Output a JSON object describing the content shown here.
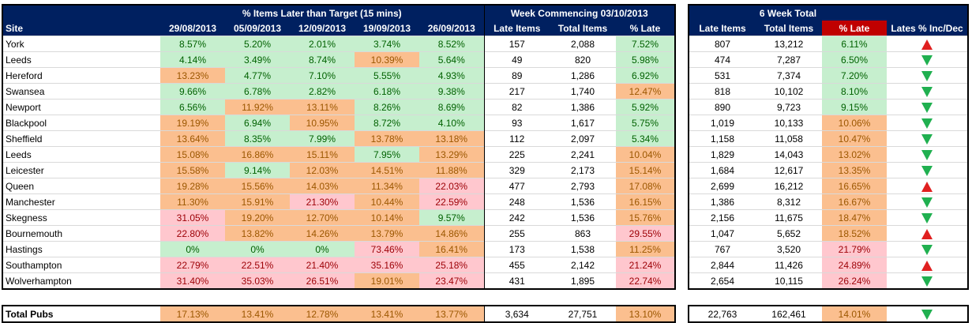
{
  "header": {
    "group1": "% Items Later than Target (15 mins)",
    "group2": "Week Commencing 03/10/2013",
    "group3": "6 Week Total",
    "col_site": "Site",
    "dates": [
      "29/08/2013",
      "05/09/2013",
      "12/09/2013",
      "19/09/2013",
      "26/09/2013"
    ],
    "late_items": "Late Items",
    "total_items": "Total Items",
    "pct_late": "% Late",
    "side_late_items": "Late Items",
    "side_total_items": "Total Items",
    "side_pct_late": "% Late",
    "lates_inc_dec": "Lates % Inc/Dec"
  },
  "colors": {
    "header_bg": "#002060",
    "pct_late_header_bg": "#c00000",
    "good": "#c6efce",
    "warn": "#fbbf8f",
    "bad": "#ffc7ce",
    "up_arrow": "#e02020",
    "down_arrow": "#20b050"
  },
  "rows": [
    {
      "site": "York",
      "pcts": [
        [
          "8.57%",
          "g"
        ],
        [
          "5.20%",
          "g"
        ],
        [
          "2.01%",
          "g"
        ],
        [
          "3.74%",
          "g"
        ],
        [
          "8.52%",
          "g"
        ]
      ],
      "late": "157",
      "total": "2,088",
      "pct": [
        "7.52%",
        "g"
      ],
      "s_late": "807",
      "s_total": "13,212",
      "s_pct": [
        "6.11%",
        "g"
      ],
      "trend": "up"
    },
    {
      "site": "Leeds",
      "pcts": [
        [
          "4.14%",
          "g"
        ],
        [
          "3.49%",
          "g"
        ],
        [
          "8.74%",
          "g"
        ],
        [
          "10.39%",
          "o"
        ],
        [
          "5.64%",
          "g"
        ]
      ],
      "late": "49",
      "total": "820",
      "pct": [
        "5.98%",
        "g"
      ],
      "s_late": "474",
      "s_total": "7,287",
      "s_pct": [
        "6.50%",
        "g"
      ],
      "trend": "down"
    },
    {
      "site": "Hereford",
      "pcts": [
        [
          "13.23%",
          "o"
        ],
        [
          "4.77%",
          "g"
        ],
        [
          "7.10%",
          "g"
        ],
        [
          "5.55%",
          "g"
        ],
        [
          "4.93%",
          "g"
        ]
      ],
      "late": "89",
      "total": "1,286",
      "pct": [
        "6.92%",
        "g"
      ],
      "s_late": "531",
      "s_total": "7,374",
      "s_pct": [
        "7.20%",
        "g"
      ],
      "trend": "down"
    },
    {
      "site": "Swansea",
      "pcts": [
        [
          "9.66%",
          "g"
        ],
        [
          "6.78%",
          "g"
        ],
        [
          "2.82%",
          "g"
        ],
        [
          "6.18%",
          "g"
        ],
        [
          "9.38%",
          "g"
        ]
      ],
      "late": "217",
      "total": "1,740",
      "pct": [
        "12.47%",
        "o"
      ],
      "s_late": "818",
      "s_total": "10,102",
      "s_pct": [
        "8.10%",
        "g"
      ],
      "trend": "down"
    },
    {
      "site": "Newport",
      "pcts": [
        [
          "6.56%",
          "g"
        ],
        [
          "11.92%",
          "o"
        ],
        [
          "13.11%",
          "o"
        ],
        [
          "8.26%",
          "g"
        ],
        [
          "8.69%",
          "g"
        ]
      ],
      "late": "82",
      "total": "1,386",
      "pct": [
        "5.92%",
        "g"
      ],
      "s_late": "890",
      "s_total": "9,723",
      "s_pct": [
        "9.15%",
        "g"
      ],
      "trend": "down"
    },
    {
      "site": "Blackpool",
      "pcts": [
        [
          "19.19%",
          "o"
        ],
        [
          "6.94%",
          "g"
        ],
        [
          "10.95%",
          "o"
        ],
        [
          "8.72%",
          "g"
        ],
        [
          "4.10%",
          "g"
        ]
      ],
      "late": "93",
      "total": "1,617",
      "pct": [
        "5.75%",
        "g"
      ],
      "s_late": "1,019",
      "s_total": "10,133",
      "s_pct": [
        "10.06%",
        "o"
      ],
      "trend": "down"
    },
    {
      "site": "Sheffield",
      "pcts": [
        [
          "13.64%",
          "o"
        ],
        [
          "8.35%",
          "g"
        ],
        [
          "7.99%",
          "g"
        ],
        [
          "13.78%",
          "o"
        ],
        [
          "13.18%",
          "o"
        ]
      ],
      "late": "112",
      "total": "2,097",
      "pct": [
        "5.34%",
        "g"
      ],
      "s_late": "1,158",
      "s_total": "11,058",
      "s_pct": [
        "10.47%",
        "o"
      ],
      "trend": "down"
    },
    {
      "site": "Leeds",
      "pcts": [
        [
          "15.08%",
          "o"
        ],
        [
          "16.86%",
          "o"
        ],
        [
          "15.11%",
          "o"
        ],
        [
          "7.95%",
          "g"
        ],
        [
          "13.29%",
          "o"
        ]
      ],
      "late": "225",
      "total": "2,241",
      "pct": [
        "10.04%",
        "o"
      ],
      "s_late": "1,829",
      "s_total": "14,043",
      "s_pct": [
        "13.02%",
        "o"
      ],
      "trend": "down"
    },
    {
      "site": "Leicester",
      "pcts": [
        [
          "15.58%",
          "o"
        ],
        [
          "9.14%",
          "g"
        ],
        [
          "12.03%",
          "o"
        ],
        [
          "14.51%",
          "o"
        ],
        [
          "11.88%",
          "o"
        ]
      ],
      "late": "329",
      "total": "2,173",
      "pct": [
        "15.14%",
        "o"
      ],
      "s_late": "1,684",
      "s_total": "12,617",
      "s_pct": [
        "13.35%",
        "o"
      ],
      "trend": "down"
    },
    {
      "site": "Queen",
      "pcts": [
        [
          "19.28%",
          "o"
        ],
        [
          "15.56%",
          "o"
        ],
        [
          "14.03%",
          "o"
        ],
        [
          "11.34%",
          "o"
        ],
        [
          "22.03%",
          "r"
        ]
      ],
      "late": "477",
      "total": "2,793",
      "pct": [
        "17.08%",
        "o"
      ],
      "s_late": "2,699",
      "s_total": "16,212",
      "s_pct": [
        "16.65%",
        "o"
      ],
      "trend": "up"
    },
    {
      "site": "Manchester",
      "pcts": [
        [
          "11.30%",
          "o"
        ],
        [
          "15.91%",
          "o"
        ],
        [
          "21.30%",
          "r"
        ],
        [
          "10.44%",
          "o"
        ],
        [
          "22.59%",
          "r"
        ]
      ],
      "late": "248",
      "total": "1,536",
      "pct": [
        "16.15%",
        "o"
      ],
      "s_late": "1,386",
      "s_total": "8,312",
      "s_pct": [
        "16.67%",
        "o"
      ],
      "trend": "down"
    },
    {
      "site": "Skegness",
      "pcts": [
        [
          "31.05%",
          "r"
        ],
        [
          "19.20%",
          "o"
        ],
        [
          "12.70%",
          "o"
        ],
        [
          "10.14%",
          "o"
        ],
        [
          "9.57%",
          "g"
        ]
      ],
      "late": "242",
      "total": "1,536",
      "pct": [
        "15.76%",
        "o"
      ],
      "s_late": "2,156",
      "s_total": "11,675",
      "s_pct": [
        "18.47%",
        "o"
      ],
      "trend": "down"
    },
    {
      "site": "Bournemouth",
      "pcts": [
        [
          "22.80%",
          "r"
        ],
        [
          "13.82%",
          "o"
        ],
        [
          "14.26%",
          "o"
        ],
        [
          "13.79%",
          "o"
        ],
        [
          "14.86%",
          "o"
        ]
      ],
      "late": "255",
      "total": "863",
      "pct": [
        "29.55%",
        "r"
      ],
      "s_late": "1,047",
      "s_total": "5,652",
      "s_pct": [
        "18.52%",
        "o"
      ],
      "trend": "up"
    },
    {
      "site": "Hastings",
      "pcts": [
        [
          "0%",
          "g"
        ],
        [
          "0%",
          "g"
        ],
        [
          "0%",
          "g"
        ],
        [
          "73.46%",
          "r"
        ],
        [
          "16.41%",
          "o"
        ]
      ],
      "late": "173",
      "total": "1,538",
      "pct": [
        "11.25%",
        "o"
      ],
      "s_late": "767",
      "s_total": "3,520",
      "s_pct": [
        "21.79%",
        "r"
      ],
      "trend": "down"
    },
    {
      "site": "Southampton",
      "pcts": [
        [
          "22.79%",
          "r"
        ],
        [
          "22.51%",
          "r"
        ],
        [
          "21.40%",
          "r"
        ],
        [
          "35.16%",
          "r"
        ],
        [
          "25.18%",
          "r"
        ]
      ],
      "late": "455",
      "total": "2,142",
      "pct": [
        "21.24%",
        "r"
      ],
      "s_late": "2,844",
      "s_total": "11,426",
      "s_pct": [
        "24.89%",
        "r"
      ],
      "trend": "up"
    },
    {
      "site": "Wolverhampton",
      "pcts": [
        [
          "31.40%",
          "r"
        ],
        [
          "35.03%",
          "r"
        ],
        [
          "26.51%",
          "r"
        ],
        [
          "19.01%",
          "o"
        ],
        [
          "23.47%",
          "r"
        ]
      ],
      "late": "431",
      "total": "1,895",
      "pct": [
        "22.74%",
        "r"
      ],
      "s_late": "2,654",
      "s_total": "10,115",
      "s_pct": [
        "26.24%",
        "r"
      ],
      "trend": "down"
    }
  ],
  "total": {
    "label": "Total Pubs",
    "pcts": [
      [
        "17.13%",
        "o"
      ],
      [
        "13.41%",
        "o"
      ],
      [
        "12.78%",
        "o"
      ],
      [
        "13.41%",
        "o"
      ],
      [
        "13.77%",
        "o"
      ]
    ],
    "late": "3,634",
    "total": "27,751",
    "pct": [
      "13.10%",
      "o"
    ],
    "s_late": "22,763",
    "s_total": "162,461",
    "s_pct": [
      "14.01%",
      "o"
    ],
    "trend": "down"
  }
}
